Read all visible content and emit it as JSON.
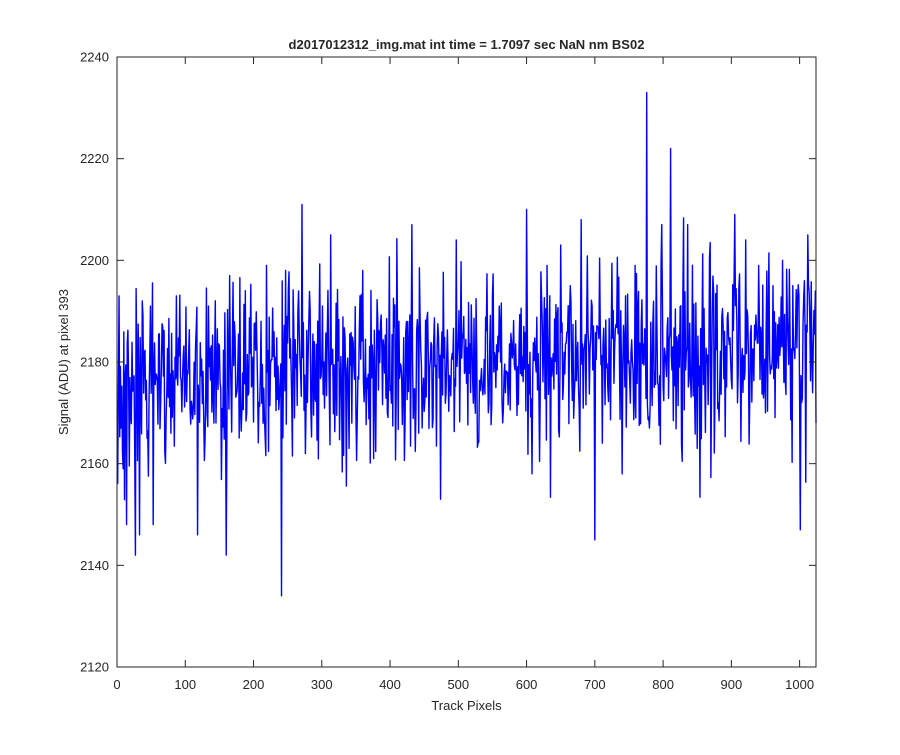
{
  "chart_data": {
    "type": "line",
    "title": "d2017012312_img.mat int time = 1.7097 sec  NaN nm BS02",
    "xlabel": "Track Pixels",
    "ylabel": "Signal (ADU) at pixel 393",
    "xlim": [
      0,
      1024
    ],
    "ylim": [
      2120,
      2240
    ],
    "xticks": [
      0,
      100,
      200,
      300,
      400,
      500,
      600,
      700,
      800,
      900,
      1000
    ],
    "yticks": [
      2120,
      2140,
      2160,
      2180,
      2200,
      2220,
      2240
    ],
    "grid": false,
    "line_color": "#0000ff",
    "series": [
      {
        "x_start": 1,
        "x_step": 1,
        "n_points": 1024,
        "mean": 2180,
        "noise_std": 9,
        "values_anchor": [
          [
            1,
            2156
          ],
          [
            3,
            2193
          ],
          [
            6,
            2167
          ],
          [
            9,
            2159
          ],
          [
            12,
            2177
          ],
          [
            14,
            2148
          ],
          [
            20,
            2170
          ],
          [
            27,
            2142
          ],
          [
            33,
            2146
          ],
          [
            37,
            2192
          ],
          [
            44,
            2165
          ],
          [
            49,
            2191
          ],
          [
            53,
            2148
          ],
          [
            87,
            2193
          ],
          [
            118,
            2146
          ],
          [
            134,
            2191
          ],
          [
            160,
            2142
          ],
          [
            165,
            2197
          ],
          [
            211,
            2188
          ],
          [
            219,
            2199
          ],
          [
            241,
            2134
          ],
          [
            247,
            2198
          ],
          [
            260,
            2169
          ],
          [
            271,
            2211
          ],
          [
            303,
            2180
          ],
          [
            313,
            2205
          ],
          [
            340,
            2163
          ],
          [
            360,
            2198
          ],
          [
            376,
            2161
          ],
          [
            413,
            2188
          ],
          [
            432,
            2207
          ],
          [
            442,
            2166
          ],
          [
            474,
            2153
          ],
          [
            497,
            2204
          ],
          [
            518,
            2174
          ],
          [
            560,
            2191
          ],
          [
            600,
            2210
          ],
          [
            608,
            2158
          ],
          [
            630,
            2199
          ],
          [
            650,
            2203
          ],
          [
            680,
            2208
          ],
          [
            700,
            2145
          ],
          [
            740,
            2158
          ],
          [
            760,
            2169
          ],
          [
            776,
            2233
          ],
          [
            787,
            2175
          ],
          [
            798,
            2207
          ],
          [
            811,
            2222
          ],
          [
            836,
            2207
          ],
          [
            850,
            2163
          ],
          [
            890,
            2186
          ],
          [
            905,
            2209
          ],
          [
            921,
            2204
          ],
          [
            940,
            2199
          ],
          [
            961,
            2195
          ],
          [
            975,
            2200
          ],
          [
            990,
            2195
          ],
          [
            1001,
            2147
          ],
          [
            1007,
            2196
          ],
          [
            1012,
            2205
          ],
          [
            1024,
            2168
          ]
        ]
      }
    ]
  }
}
